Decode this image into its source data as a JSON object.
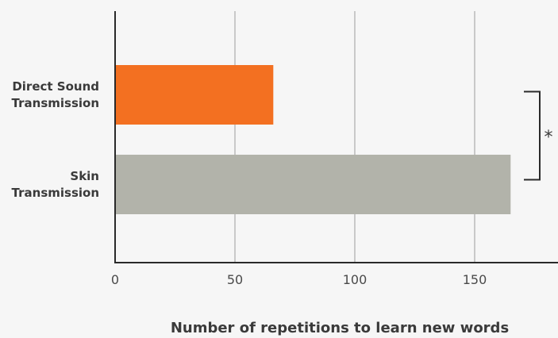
{
  "chart_data": {
    "type": "bar",
    "orientation": "horizontal",
    "categories": [
      "Direct Sound\nTransmission",
      "Skin\nTransmission"
    ],
    "values": [
      66,
      165
    ],
    "colors": [
      "#f37021",
      "#b2b3aa"
    ],
    "xlabel": "Number of repetitions to learn new words",
    "ylabel": "",
    "title": "",
    "xlim": [
      0,
      185
    ],
    "xticks": [
      0,
      50,
      100,
      150
    ],
    "grid": "vertical",
    "significance": {
      "between": [
        0,
        1
      ],
      "label": "*"
    }
  }
}
